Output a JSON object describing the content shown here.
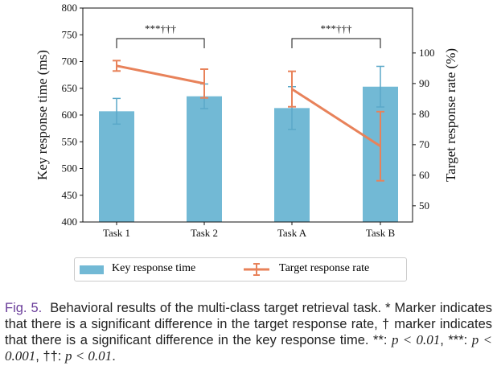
{
  "chart_data": {
    "type": "bar+line",
    "categories": [
      "Task 1",
      "Task 2",
      "Task A",
      "Task B"
    ],
    "bar_series": {
      "name": "Key response time",
      "values": [
        607,
        635,
        613,
        653
      ],
      "errors": [
        24,
        23,
        40,
        38
      ],
      "color": "#72b9d5"
    },
    "line_series": {
      "name": "Target response rate",
      "values": [
        95.8,
        90.0,
        88.2,
        69.5
      ],
      "errors": [
        1.7,
        4.7,
        5.8,
        11.3
      ],
      "color": "#e8825a"
    },
    "ylabel": "Key response time (ms)",
    "ylabel_right": "Target response rate (%)",
    "ylim": [
      400,
      800
    ],
    "ylim_right": [
      44.7,
      114.7
    ],
    "yticks": [
      400,
      450,
      500,
      550,
      600,
      650,
      700,
      750,
      800
    ],
    "yticks_right": [
      50,
      60,
      70,
      80,
      90,
      100
    ],
    "grid": false,
    "legend_placement": "bottom",
    "annotations": [
      {
        "text": "***†††",
        "between": [
          "Task 1",
          "Task 2"
        ]
      },
      {
        "text": "***†††",
        "between": [
          "Task A",
          "Task B"
        ]
      }
    ]
  },
  "caption": {
    "label": "Fig. 5.",
    "text1": "Behavioral results of the multi-class target retrieval task. * Marker indicates that there is a significant difference in the target response rate, † marker indicates that there is a significant difference in the key response time. **: ",
    "m1": "p < 0.01",
    "t2": ", ***: ",
    "m2": "p < 0.001",
    "t3": ", ††: ",
    "m3": "p < 0.01",
    "t4": "."
  }
}
